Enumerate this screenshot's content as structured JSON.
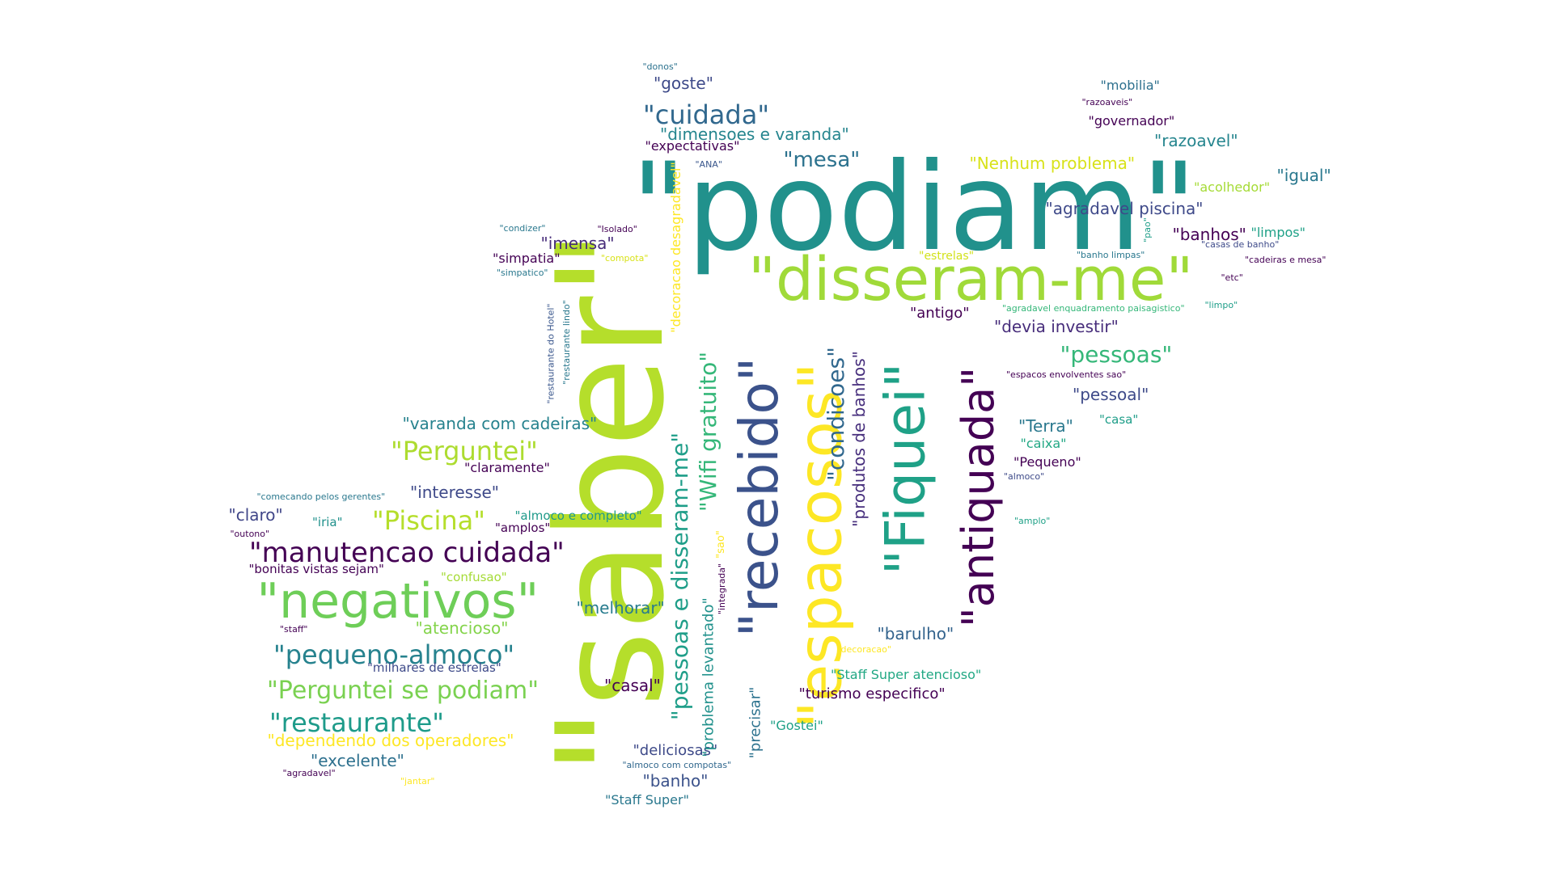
{
  "word_cloud": {
    "words": [
      {
        "text": "\"podiam\"",
        "color": "#21918c"
      },
      {
        "text": "\"saber\"",
        "color": "#b5de2b"
      },
      {
        "text": "\"disseram-me\"",
        "color": "#a0da39"
      },
      {
        "text": "\"recebido\"",
        "color": "#3b528b"
      },
      {
        "text": "\"espacosos\"",
        "color": "#fde725"
      },
      {
        "text": "\"Fiquei\"",
        "color": "#1fa187"
      },
      {
        "text": "\"antiquada\"",
        "color": "#440154"
      },
      {
        "text": "\"negativos\"",
        "color": "#6ece58"
      },
      {
        "text": "\"pessoas e disseram-me\"",
        "color": "#1f9e89"
      },
      {
        "text": "\"Wifi gratuito\"",
        "color": "#35b779"
      },
      {
        "text": "\"condicoes\"",
        "color": "#31688e"
      },
      {
        "text": "\"produtos de banhos\"",
        "color": "#472f7d"
      },
      {
        "text": "\"manutencao cuidada\"",
        "color": "#440154"
      },
      {
        "text": "\"pequeno-almoco\"",
        "color": "#26828e"
      },
      {
        "text": "\"Perguntei se podiam\"",
        "color": "#7ad151"
      },
      {
        "text": "\"restaurante\"",
        "color": "#1e9b8a"
      },
      {
        "text": "\"Piscina\"",
        "color": "#b5de2b"
      },
      {
        "text": "\"Perguntei\"",
        "color": "#addc30"
      },
      {
        "text": "\"cuidada\"",
        "color": "#31688e"
      },
      {
        "text": "\"mesa\"",
        "color": "#2c728e"
      },
      {
        "text": "\"pessoas\"",
        "color": "#35b779"
      },
      {
        "text": "\"goste\"",
        "color": "#3e4a89"
      },
      {
        "text": "\"dimensoes e varanda\"",
        "color": "#25858e"
      },
      {
        "text": "\"expectativas\"",
        "color": "#440154"
      },
      {
        "text": "\"Nenhum problema\"",
        "color": "#d8e219"
      },
      {
        "text": "\"varanda com cadeiras\"",
        "color": "#26828e"
      },
      {
        "text": "\"interesse\"",
        "color": "#3e4989"
      },
      {
        "text": "\"claro\"",
        "color": "#404688"
      },
      {
        "text": "\"dependendo dos operadores\"",
        "color": "#fde725"
      },
      {
        "text": "\"excelente\"",
        "color": "#2d708e"
      },
      {
        "text": "\"melhorar\"",
        "color": "#287c8e"
      },
      {
        "text": "\"atencioso\"",
        "color": "#84d44b"
      },
      {
        "text": "\"casal\"",
        "color": "#440154"
      },
      {
        "text": "\"deliciosas\"",
        "color": "#3e4a89"
      },
      {
        "text": "\"banho\"",
        "color": "#3b528b"
      },
      {
        "text": "\"Staff Super\"",
        "color": "#2a788e"
      },
      {
        "text": "\"problema levantado\"",
        "color": "#21918c"
      },
      {
        "text": "\"decoracao desagradavel\"",
        "color": "#fde725"
      },
      {
        "text": "\"precisar\"",
        "color": "#2c728e"
      },
      {
        "text": "\"Gostei\"",
        "color": "#1fa187"
      },
      {
        "text": "\"barulho\"",
        "color": "#33638d"
      },
      {
        "text": "\"Staff Super atencioso\"",
        "color": "#22a884"
      },
      {
        "text": "\"turismo especifico\"",
        "color": "#440154"
      },
      {
        "text": "\"antigo\"",
        "color": "#440154"
      },
      {
        "text": "\"devia investir\"",
        "color": "#472d7b"
      },
      {
        "text": "\"pessoal\"",
        "color": "#3e4a89"
      },
      {
        "text": "\"Terra\"",
        "color": "#2a788e"
      },
      {
        "text": "\"casa\"",
        "color": "#1f9e89"
      },
      {
        "text": "\"caixa\"",
        "color": "#22a884"
      },
      {
        "text": "\"Pequeno\"",
        "color": "#440154"
      },
      {
        "text": "\"agradavel piscina\"",
        "color": "#3e4989"
      },
      {
        "text": "\"banhos\"",
        "color": "#440154"
      },
      {
        "text": "\"limpos\"",
        "color": "#1fa187"
      },
      {
        "text": "\"igual\"",
        "color": "#2a788e"
      },
      {
        "text": "\"acolhedor\"",
        "color": "#a5db36"
      },
      {
        "text": "\"razoavel\"",
        "color": "#25858e"
      },
      {
        "text": "\"governador\"",
        "color": "#440154"
      },
      {
        "text": "\"mobilia\"",
        "color": "#2d708e"
      },
      {
        "text": "\"imensa\"",
        "color": "#472c7a"
      },
      {
        "text": "\"simpatia\"",
        "color": "#440154"
      },
      {
        "text": "\"claramente\"",
        "color": "#440154"
      },
      {
        "text": "\"iria\"",
        "color": "#21918c"
      },
      {
        "text": "\"almoco e completo\"",
        "color": "#1f9a8a"
      },
      {
        "text": "\"amplos\"",
        "color": "#440154"
      },
      {
        "text": "\"confusao\"",
        "color": "#a5db36"
      },
      {
        "text": "\"bonitas vistas sejam\"",
        "color": "#440154"
      },
      {
        "text": "\"milhares de estrelas\"",
        "color": "#3e4a89"
      },
      {
        "text": "\"estrelas\"",
        "color": "#d2e21b"
      },
      {
        "text": "\"restaurante do Hotel\"",
        "color": "#39568c"
      },
      {
        "text": "\"restaurante lindo\"",
        "color": "#2a788e"
      },
      {
        "text": "\"sao\"",
        "color": "#fde725"
      },
      {
        "text": "\"integrada\"",
        "color": "#440154"
      },
      {
        "text": "\"espacos envolventes sao\"",
        "color": "#440154"
      },
      {
        "text": "\"agradavel enquadramento paisagistico\"",
        "color": "#35b779"
      },
      {
        "text": "\"limpo\"",
        "color": "#1f9e89"
      },
      {
        "text": "\"etc\"",
        "color": "#440154"
      },
      {
        "text": "\"cadeiras e mesa\"",
        "color": "#440154"
      },
      {
        "text": "\"banho limpas\"",
        "color": "#2a788e"
      },
      {
        "text": "\"casas de banho\"",
        "color": "#3e4a89"
      },
      {
        "text": "\"pao\"",
        "color": "#1f9e89"
      },
      {
        "text": "\"razoaveis\"",
        "color": "#440154"
      },
      {
        "text": "\"donos\"",
        "color": "#2c728e"
      },
      {
        "text": "\"ANA\"",
        "color": "#39568c"
      },
      {
        "text": "\"condizer\"",
        "color": "#2a788e"
      },
      {
        "text": "\"Isolado\"",
        "color": "#440154"
      },
      {
        "text": "\"compota\"",
        "color": "#d8e219"
      },
      {
        "text": "\"simpatico\"",
        "color": "#2a788e"
      },
      {
        "text": "\"comecando pelos gerentes\"",
        "color": "#2a788e"
      },
      {
        "text": "\"outono\"",
        "color": "#440154"
      },
      {
        "text": "\"staff\"",
        "color": "#440154"
      },
      {
        "text": "\"almoco com compotas\"",
        "color": "#31688e"
      },
      {
        "text": "\"agradavel\"",
        "color": "#440154"
      },
      {
        "text": "\"jantar\"",
        "color": "#fde725"
      },
      {
        "text": "\"decoracao\"",
        "color": "#fde725"
      },
      {
        "text": "\"almoco\"",
        "color": "#3e4a89"
      },
      {
        "text": "\"amplo\"",
        "color": "#1fa187"
      }
    ]
  }
}
